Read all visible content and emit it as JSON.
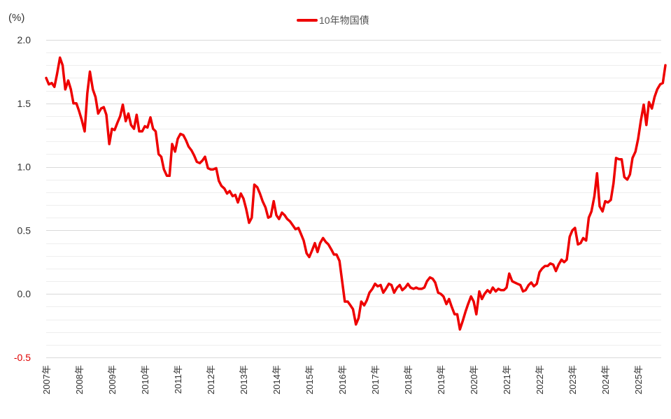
{
  "chart_data": {
    "type": "line",
    "unit_label": "(%)",
    "title": "",
    "xlabel": "",
    "ylabel": "",
    "ylim": [
      -0.5,
      2.0
    ],
    "yticks": [
      "2.0",
      "1.5",
      "1.0",
      "0.5",
      "0.0",
      "-0.5"
    ],
    "ytick_values": [
      2.0,
      1.5,
      1.0,
      0.5,
      0.0,
      -0.5
    ],
    "xlim": [
      2007.0,
      2026.0
    ],
    "xticks": [
      "2007年",
      "2008年",
      "2009年",
      "2010年",
      "2011年",
      "2012年",
      "2013年",
      "2014年",
      "2015年",
      "2016年",
      "2017年",
      "2018年",
      "2019年",
      "2020年",
      "2021年",
      "2022年",
      "2023年",
      "2024年",
      "2025年"
    ],
    "xtick_values": [
      2007,
      2008,
      2009,
      2010,
      2011,
      2012,
      2013,
      2014,
      2015,
      2016,
      2017,
      2018,
      2019,
      2020,
      2021,
      2022,
      2023,
      2024,
      2025
    ],
    "grid": true,
    "legend_position": "top-center",
    "colors": {
      "series": "#ee0000",
      "negative_tick": "#e00000"
    },
    "series": [
      {
        "name": "10年物国債",
        "points": [
          [
            2007.0,
            1.7
          ],
          [
            2007.08,
            1.65
          ],
          [
            2007.17,
            1.66
          ],
          [
            2007.25,
            1.63
          ],
          [
            2007.33,
            1.73
          ],
          [
            2007.42,
            1.86
          ],
          [
            2007.5,
            1.8
          ],
          [
            2007.58,
            1.61
          ],
          [
            2007.67,
            1.68
          ],
          [
            2007.75,
            1.61
          ],
          [
            2007.83,
            1.5
          ],
          [
            2007.92,
            1.5
          ],
          [
            2008.0,
            1.44
          ],
          [
            2008.08,
            1.37
          ],
          [
            2008.17,
            1.28
          ],
          [
            2008.25,
            1.58
          ],
          [
            2008.33,
            1.75
          ],
          [
            2008.42,
            1.61
          ],
          [
            2008.5,
            1.55
          ],
          [
            2008.58,
            1.42
          ],
          [
            2008.67,
            1.46
          ],
          [
            2008.75,
            1.47
          ],
          [
            2008.83,
            1.41
          ],
          [
            2008.92,
            1.18
          ],
          [
            2009.0,
            1.3
          ],
          [
            2009.08,
            1.29
          ],
          [
            2009.17,
            1.35
          ],
          [
            2009.25,
            1.4
          ],
          [
            2009.33,
            1.49
          ],
          [
            2009.42,
            1.36
          ],
          [
            2009.5,
            1.42
          ],
          [
            2009.58,
            1.33
          ],
          [
            2009.67,
            1.3
          ],
          [
            2009.75,
            1.41
          ],
          [
            2009.83,
            1.28
          ],
          [
            2009.92,
            1.28
          ],
          [
            2010.0,
            1.32
          ],
          [
            2010.08,
            1.31
          ],
          [
            2010.17,
            1.39
          ],
          [
            2010.25,
            1.3
          ],
          [
            2010.33,
            1.28
          ],
          [
            2010.42,
            1.1
          ],
          [
            2010.5,
            1.08
          ],
          [
            2010.58,
            0.98
          ],
          [
            2010.67,
            0.93
          ],
          [
            2010.75,
            0.93
          ],
          [
            2010.83,
            1.18
          ],
          [
            2010.92,
            1.12
          ],
          [
            2011.0,
            1.22
          ],
          [
            2011.08,
            1.26
          ],
          [
            2011.17,
            1.25
          ],
          [
            2011.25,
            1.21
          ],
          [
            2011.33,
            1.16
          ],
          [
            2011.42,
            1.13
          ],
          [
            2011.5,
            1.09
          ],
          [
            2011.58,
            1.04
          ],
          [
            2011.67,
            1.03
          ],
          [
            2011.75,
            1.05
          ],
          [
            2011.83,
            1.08
          ],
          [
            2011.92,
            0.99
          ],
          [
            2012.0,
            0.98
          ],
          [
            2012.08,
            0.98
          ],
          [
            2012.17,
            0.99
          ],
          [
            2012.25,
            0.89
          ],
          [
            2012.33,
            0.85
          ],
          [
            2012.42,
            0.83
          ],
          [
            2012.5,
            0.79
          ],
          [
            2012.58,
            0.81
          ],
          [
            2012.67,
            0.77
          ],
          [
            2012.75,
            0.78
          ],
          [
            2012.83,
            0.72
          ],
          [
            2012.92,
            0.79
          ],
          [
            2013.0,
            0.75
          ],
          [
            2013.08,
            0.67
          ],
          [
            2013.17,
            0.56
          ],
          [
            2013.25,
            0.6
          ],
          [
            2013.33,
            0.86
          ],
          [
            2013.42,
            0.84
          ],
          [
            2013.5,
            0.79
          ],
          [
            2013.58,
            0.73
          ],
          [
            2013.67,
            0.68
          ],
          [
            2013.75,
            0.6
          ],
          [
            2013.83,
            0.61
          ],
          [
            2013.92,
            0.73
          ],
          [
            2014.0,
            0.62
          ],
          [
            2014.08,
            0.59
          ],
          [
            2014.17,
            0.64
          ],
          [
            2014.25,
            0.62
          ],
          [
            2014.33,
            0.59
          ],
          [
            2014.42,
            0.57
          ],
          [
            2014.5,
            0.54
          ],
          [
            2014.58,
            0.51
          ],
          [
            2014.67,
            0.52
          ],
          [
            2014.75,
            0.47
          ],
          [
            2014.83,
            0.42
          ],
          [
            2014.92,
            0.32
          ],
          [
            2015.0,
            0.29
          ],
          [
            2015.08,
            0.34
          ],
          [
            2015.17,
            0.4
          ],
          [
            2015.25,
            0.33
          ],
          [
            2015.33,
            0.4
          ],
          [
            2015.42,
            0.44
          ],
          [
            2015.5,
            0.41
          ],
          [
            2015.58,
            0.39
          ],
          [
            2015.67,
            0.35
          ],
          [
            2015.75,
            0.31
          ],
          [
            2015.83,
            0.31
          ],
          [
            2015.92,
            0.26
          ],
          [
            2016.0,
            0.1
          ],
          [
            2016.08,
            -0.06
          ],
          [
            2016.17,
            -0.06
          ],
          [
            2016.25,
            -0.09
          ],
          [
            2016.33,
            -0.12
          ],
          [
            2016.42,
            -0.24
          ],
          [
            2016.5,
            -0.19
          ],
          [
            2016.58,
            -0.06
          ],
          [
            2016.67,
            -0.09
          ],
          [
            2016.75,
            -0.05
          ],
          [
            2016.83,
            0.01
          ],
          [
            2016.92,
            0.04
          ],
          [
            2017.0,
            0.08
          ],
          [
            2017.08,
            0.06
          ],
          [
            2017.17,
            0.07
          ],
          [
            2017.25,
            0.01
          ],
          [
            2017.33,
            0.04
          ],
          [
            2017.42,
            0.08
          ],
          [
            2017.5,
            0.07
          ],
          [
            2017.58,
            0.01
          ],
          [
            2017.67,
            0.05
          ],
          [
            2017.75,
            0.07
          ],
          [
            2017.83,
            0.03
          ],
          [
            2017.92,
            0.05
          ],
          [
            2018.0,
            0.08
          ],
          [
            2018.08,
            0.05
          ],
          [
            2018.17,
            0.04
          ],
          [
            2018.25,
            0.05
          ],
          [
            2018.33,
            0.04
          ],
          [
            2018.42,
            0.04
          ],
          [
            2018.5,
            0.05
          ],
          [
            2018.58,
            0.1
          ],
          [
            2018.67,
            0.13
          ],
          [
            2018.75,
            0.12
          ],
          [
            2018.83,
            0.09
          ],
          [
            2018.92,
            0.01
          ],
          [
            2019.0,
            0.0
          ],
          [
            2019.08,
            -0.02
          ],
          [
            2019.17,
            -0.08
          ],
          [
            2019.25,
            -0.04
          ],
          [
            2019.33,
            -0.1
          ],
          [
            2019.42,
            -0.16
          ],
          [
            2019.5,
            -0.16
          ],
          [
            2019.58,
            -0.28
          ],
          [
            2019.67,
            -0.21
          ],
          [
            2019.75,
            -0.14
          ],
          [
            2019.83,
            -0.08
          ],
          [
            2019.92,
            -0.02
          ],
          [
            2020.0,
            -0.06
          ],
          [
            2020.08,
            -0.16
          ],
          [
            2020.17,
            0.02
          ],
          [
            2020.25,
            -0.04
          ],
          [
            2020.33,
            0.0
          ],
          [
            2020.42,
            0.03
          ],
          [
            2020.5,
            0.01
          ],
          [
            2020.58,
            0.05
          ],
          [
            2020.67,
            0.02
          ],
          [
            2020.75,
            0.04
          ],
          [
            2020.83,
            0.03
          ],
          [
            2020.92,
            0.03
          ],
          [
            2021.0,
            0.05
          ],
          [
            2021.08,
            0.16
          ],
          [
            2021.17,
            0.1
          ],
          [
            2021.25,
            0.09
          ],
          [
            2021.33,
            0.08
          ],
          [
            2021.42,
            0.07
          ],
          [
            2021.5,
            0.02
          ],
          [
            2021.58,
            0.03
          ],
          [
            2021.67,
            0.07
          ],
          [
            2021.75,
            0.09
          ],
          [
            2021.83,
            0.06
          ],
          [
            2021.92,
            0.08
          ],
          [
            2022.0,
            0.17
          ],
          [
            2022.08,
            0.2
          ],
          [
            2022.17,
            0.22
          ],
          [
            2022.25,
            0.22
          ],
          [
            2022.33,
            0.24
          ],
          [
            2022.42,
            0.23
          ],
          [
            2022.5,
            0.18
          ],
          [
            2022.58,
            0.23
          ],
          [
            2022.67,
            0.27
          ],
          [
            2022.75,
            0.25
          ],
          [
            2022.83,
            0.27
          ],
          [
            2022.92,
            0.45
          ],
          [
            2023.0,
            0.5
          ],
          [
            2023.08,
            0.52
          ],
          [
            2023.17,
            0.39
          ],
          [
            2023.25,
            0.4
          ],
          [
            2023.33,
            0.44
          ],
          [
            2023.42,
            0.42
          ],
          [
            2023.5,
            0.6
          ],
          [
            2023.58,
            0.65
          ],
          [
            2023.67,
            0.77
          ],
          [
            2023.75,
            0.95
          ],
          [
            2023.83,
            0.69
          ],
          [
            2023.92,
            0.65
          ],
          [
            2024.0,
            0.73
          ],
          [
            2024.08,
            0.72
          ],
          [
            2024.17,
            0.74
          ],
          [
            2024.25,
            0.87
          ],
          [
            2024.33,
            1.07
          ],
          [
            2024.42,
            1.06
          ],
          [
            2024.5,
            1.06
          ],
          [
            2024.58,
            0.92
          ],
          [
            2024.67,
            0.9
          ],
          [
            2024.75,
            0.94
          ],
          [
            2024.83,
            1.07
          ],
          [
            2024.92,
            1.12
          ],
          [
            2025.0,
            1.22
          ],
          [
            2025.08,
            1.36
          ],
          [
            2025.17,
            1.49
          ],
          [
            2025.25,
            1.33
          ],
          [
            2025.33,
            1.51
          ],
          [
            2025.42,
            1.46
          ],
          [
            2025.5,
            1.55
          ],
          [
            2025.58,
            1.61
          ],
          [
            2025.67,
            1.65
          ],
          [
            2025.75,
            1.66
          ],
          [
            2025.83,
            1.8
          ]
        ]
      }
    ]
  }
}
